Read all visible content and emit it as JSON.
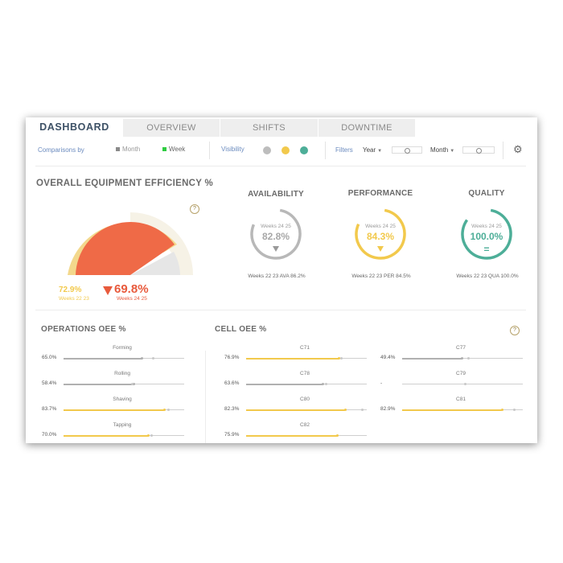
{
  "colors": {
    "accent_blue": "#3d5166",
    "link_blue": "#6b8bbf",
    "yellow": "#f2c94c",
    "red": "#e85a3c",
    "teal": "#4dae98",
    "gray": "#b0b0b0"
  },
  "tabs": [
    {
      "label": "DASHBOARD",
      "active": true
    },
    {
      "label": "OVERVIEW",
      "active": false
    },
    {
      "label": "SHIFTS",
      "active": false
    },
    {
      "label": "DOWNTIME",
      "active": false
    }
  ],
  "controls": {
    "comparisons_label": "Comparisons by",
    "month_option": "Month",
    "week_option": "Week",
    "visibility_label": "Visibility",
    "filters_label": "Filters",
    "year_select": "Year",
    "month_select": "Month",
    "settings_icon": "gear-icon"
  },
  "oee": {
    "title": "OVERALL EQUIPMENT EFFICIENCY %",
    "help_icon": "question-icon",
    "help_glyph": "?",
    "previous_value": "72.9%",
    "previous_label": "Weeks 22 23",
    "current_value": "69.8%",
    "current_label": "Weeks 24 25",
    "trend": "down"
  },
  "kpis": {
    "availability": {
      "title": "AVAILABILITY",
      "sub": "Weeks 24 25",
      "value": "82.8%",
      "fraction": 0.828,
      "trend": "down",
      "footer": "Weeks 22 23 AVA 86.2%"
    },
    "performance": {
      "title": "PERFORMANCE",
      "sub": "Weeks 24 25",
      "value": "84.3%",
      "fraction": 0.843,
      "trend": "down",
      "footer": "Weeks 22 23 PER 84.5%"
    },
    "quality": {
      "title": "QUALITY",
      "sub": "Weeks 24 25",
      "value": "100.0%",
      "fraction": 1.0,
      "trend": "equal",
      "trend_glyph": "=",
      "footer": "Weeks 22 23 QUA 100.0%"
    }
  },
  "operations": {
    "title": "OPERATIONS OEE %",
    "rows": [
      {
        "name": "Forming",
        "value": "65.0%",
        "fraction": 0.65,
        "prev": 0.74,
        "color": "gray"
      },
      {
        "name": "Rolling",
        "value": "58.4%",
        "fraction": 0.584,
        "prev": 0.57,
        "color": "gray"
      },
      {
        "name": "Shaving",
        "value": "83.7%",
        "fraction": 0.837,
        "prev": 0.87,
        "color": "yellow"
      },
      {
        "name": "Tapping",
        "value": "70.0%",
        "fraction": 0.7,
        "prev": 0.73,
        "color": "yellow"
      }
    ]
  },
  "cells": {
    "title": "CELL OEE %",
    "help_glyph": "?",
    "left": [
      {
        "name": "C71",
        "value": "76.9%",
        "fraction": 0.769,
        "prev": 0.79,
        "color": "yellow"
      },
      {
        "name": "C78",
        "value": "63.6%",
        "fraction": 0.636,
        "prev": 0.66,
        "color": "gray"
      },
      {
        "name": "C80",
        "value": "82.3%",
        "fraction": 0.823,
        "prev": 0.96,
        "color": "yellow"
      },
      {
        "name": "C82",
        "value": "75.9%",
        "fraction": 0.759,
        "prev": null,
        "color": "yellow"
      }
    ],
    "right": [
      {
        "name": "C77",
        "value": "49.4%",
        "fraction": 0.494,
        "prev": 0.55,
        "color": "gray"
      },
      {
        "name": "C79",
        "value": "-",
        "fraction": 0,
        "prev": 0.52,
        "color": "gray"
      },
      {
        "name": "C81",
        "value": "82.9%",
        "fraction": 0.829,
        "prev": 0.93,
        "color": "yellow"
      }
    ]
  }
}
